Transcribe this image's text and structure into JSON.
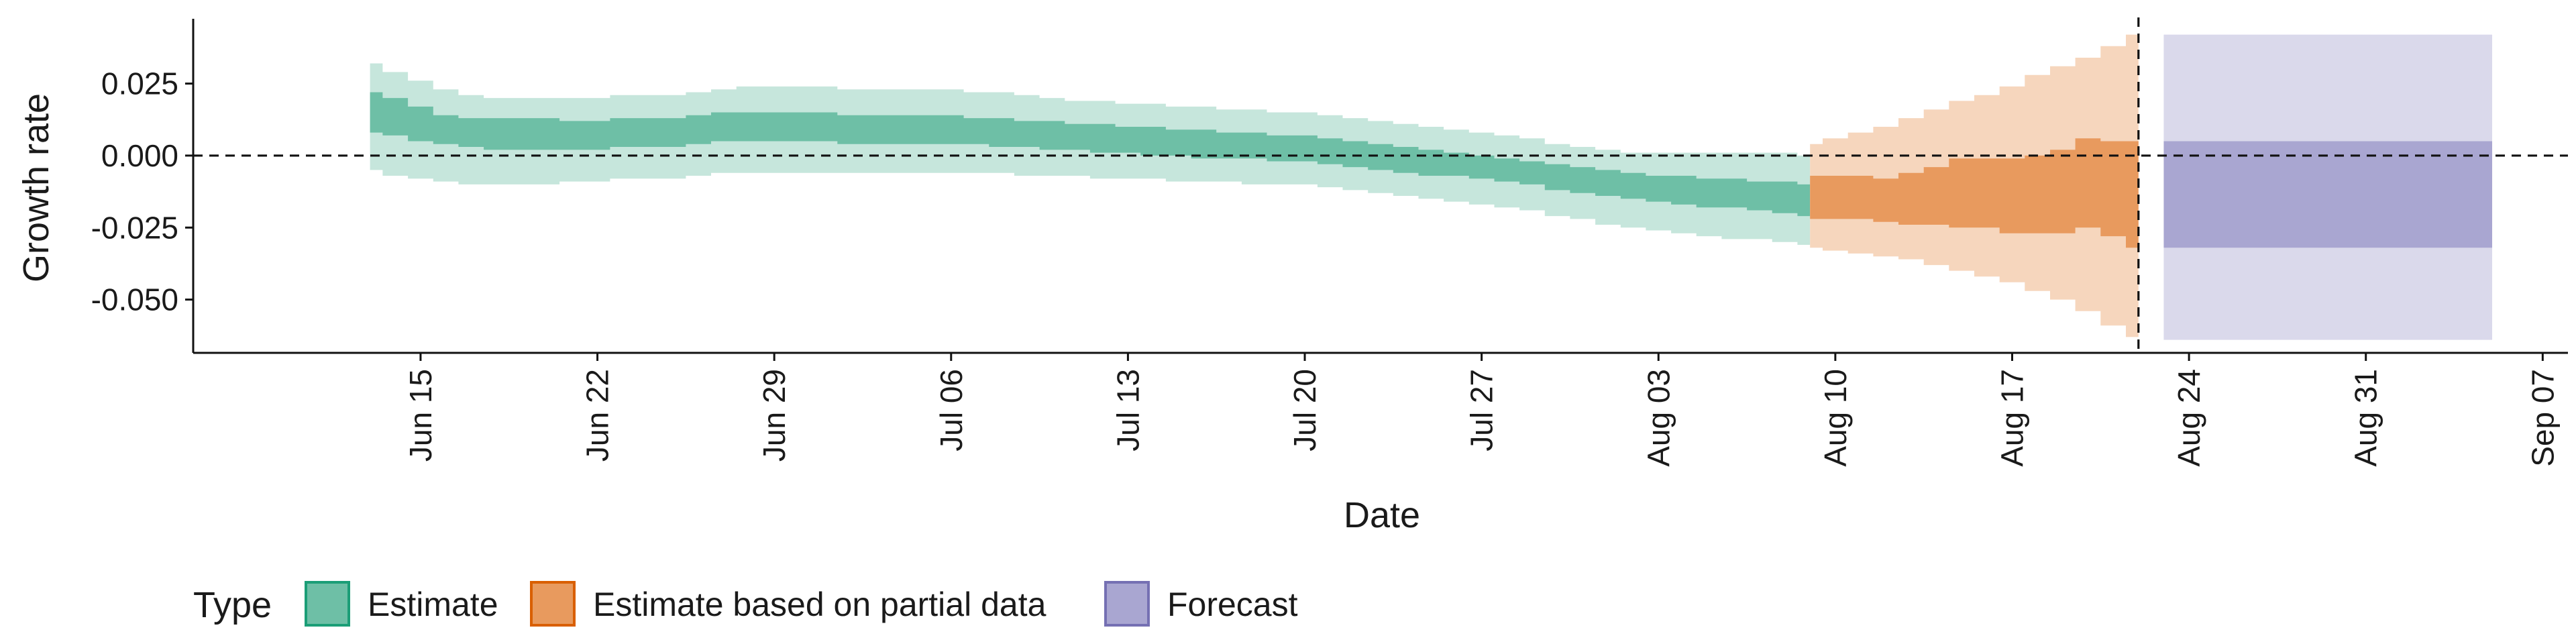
{
  "chart_data": {
    "type": "area",
    "xlabel": "Date",
    "ylabel": "Growth rate",
    "x_domain": [
      "2020-06-06",
      "2020-09-08"
    ],
    "ylim": [
      -0.0685,
      0.0475
    ],
    "y_ticks": [
      0.025,
      0.0,
      -0.025,
      -0.05
    ],
    "y_tick_labels": [
      "0.025",
      "0.000",
      "-0.025",
      "-0.050"
    ],
    "x_ticks": [
      "2020-06-15",
      "2020-06-22",
      "2020-06-29",
      "2020-07-06",
      "2020-07-13",
      "2020-07-20",
      "2020-07-27",
      "2020-08-03",
      "2020-08-10",
      "2020-08-17",
      "2020-08-24",
      "2020-08-31",
      "2020-09-07"
    ],
    "x_tick_labels": [
      "Jun 15",
      "Jun 22",
      "Jun 29",
      "Jul 06",
      "Jul 13",
      "Jul 20",
      "Jul 27",
      "Aug 03",
      "Aug 10",
      "Aug 17",
      "Aug 24",
      "Aug 31",
      "Sep 07"
    ],
    "reference_line_y": 0,
    "vertical_reference_x": "2020-08-22",
    "grid": false,
    "legend": {
      "title": "Type",
      "placement": "bottom",
      "entries": [
        {
          "label": "Estimate",
          "fill": "#6ebfa6",
          "stroke": "#1b9e77"
        },
        {
          "label": "Estimate based on partial data",
          "fill": "#e89a5e",
          "stroke": "#d95f02"
        },
        {
          "label": "Forecast",
          "fill": "#a9a6d1",
          "stroke": "#7570b3"
        }
      ]
    },
    "series": [
      {
        "name": "Estimate",
        "color_inner": "#6ebfa6",
        "color_outer": "#c6e6dc",
        "points": [
          {
            "x": "2020-06-13",
            "lo90": -0.005,
            "lo50": 0.008,
            "hi50": 0.022,
            "hi90": 0.032
          },
          {
            "x": "2020-06-14",
            "lo90": -0.007,
            "lo50": 0.007,
            "hi50": 0.02,
            "hi90": 0.029
          },
          {
            "x": "2020-06-15",
            "lo90": -0.008,
            "lo50": 0.005,
            "hi50": 0.017,
            "hi90": 0.026
          },
          {
            "x": "2020-06-16",
            "lo90": -0.009,
            "lo50": 0.004,
            "hi50": 0.014,
            "hi90": 0.023
          },
          {
            "x": "2020-06-17",
            "lo90": -0.01,
            "lo50": 0.003,
            "hi50": 0.013,
            "hi90": 0.021
          },
          {
            "x": "2020-06-18",
            "lo90": -0.01,
            "lo50": 0.002,
            "hi50": 0.013,
            "hi90": 0.02
          },
          {
            "x": "2020-06-19",
            "lo90": -0.01,
            "lo50": 0.002,
            "hi50": 0.013,
            "hi90": 0.02
          },
          {
            "x": "2020-06-20",
            "lo90": -0.01,
            "lo50": 0.002,
            "hi50": 0.013,
            "hi90": 0.02
          },
          {
            "x": "2020-06-21",
            "lo90": -0.009,
            "lo50": 0.002,
            "hi50": 0.012,
            "hi90": 0.02
          },
          {
            "x": "2020-06-22",
            "lo90": -0.009,
            "lo50": 0.002,
            "hi50": 0.012,
            "hi90": 0.02
          },
          {
            "x": "2020-06-23",
            "lo90": -0.008,
            "lo50": 0.003,
            "hi50": 0.013,
            "hi90": 0.021
          },
          {
            "x": "2020-06-24",
            "lo90": -0.008,
            "lo50": 0.003,
            "hi50": 0.013,
            "hi90": 0.021
          },
          {
            "x": "2020-06-25",
            "lo90": -0.008,
            "lo50": 0.003,
            "hi50": 0.013,
            "hi90": 0.021
          },
          {
            "x": "2020-06-26",
            "lo90": -0.007,
            "lo50": 0.004,
            "hi50": 0.014,
            "hi90": 0.022
          },
          {
            "x": "2020-06-27",
            "lo90": -0.006,
            "lo50": 0.005,
            "hi50": 0.015,
            "hi90": 0.023
          },
          {
            "x": "2020-06-28",
            "lo90": -0.006,
            "lo50": 0.005,
            "hi50": 0.015,
            "hi90": 0.024
          },
          {
            "x": "2020-06-29",
            "lo90": -0.006,
            "lo50": 0.005,
            "hi50": 0.015,
            "hi90": 0.024
          },
          {
            "x": "2020-06-30",
            "lo90": -0.006,
            "lo50": 0.005,
            "hi50": 0.015,
            "hi90": 0.024
          },
          {
            "x": "2020-07-01",
            "lo90": -0.006,
            "lo50": 0.005,
            "hi50": 0.015,
            "hi90": 0.024
          },
          {
            "x": "2020-07-02",
            "lo90": -0.006,
            "lo50": 0.004,
            "hi50": 0.014,
            "hi90": 0.023
          },
          {
            "x": "2020-07-03",
            "lo90": -0.006,
            "lo50": 0.004,
            "hi50": 0.014,
            "hi90": 0.023
          },
          {
            "x": "2020-07-04",
            "lo90": -0.006,
            "lo50": 0.004,
            "hi50": 0.014,
            "hi90": 0.023
          },
          {
            "x": "2020-07-05",
            "lo90": -0.006,
            "lo50": 0.004,
            "hi50": 0.014,
            "hi90": 0.023
          },
          {
            "x": "2020-07-06",
            "lo90": -0.006,
            "lo50": 0.004,
            "hi50": 0.014,
            "hi90": 0.023
          },
          {
            "x": "2020-07-07",
            "lo90": -0.006,
            "lo50": 0.004,
            "hi50": 0.013,
            "hi90": 0.022
          },
          {
            "x": "2020-07-08",
            "lo90": -0.006,
            "lo50": 0.003,
            "hi50": 0.013,
            "hi90": 0.022
          },
          {
            "x": "2020-07-09",
            "lo90": -0.007,
            "lo50": 0.003,
            "hi50": 0.012,
            "hi90": 0.021
          },
          {
            "x": "2020-07-10",
            "lo90": -0.007,
            "lo50": 0.002,
            "hi50": 0.012,
            "hi90": 0.02
          },
          {
            "x": "2020-07-11",
            "lo90": -0.007,
            "lo50": 0.002,
            "hi50": 0.011,
            "hi90": 0.019
          },
          {
            "x": "2020-07-12",
            "lo90": -0.008,
            "lo50": 0.001,
            "hi50": 0.011,
            "hi90": 0.019
          },
          {
            "x": "2020-07-13",
            "lo90": -0.008,
            "lo50": 0.001,
            "hi50": 0.01,
            "hi90": 0.018
          },
          {
            "x": "2020-07-14",
            "lo90": -0.008,
            "lo50": 0.0,
            "hi50": 0.01,
            "hi90": 0.018
          },
          {
            "x": "2020-07-15",
            "lo90": -0.009,
            "lo50": 0.0,
            "hi50": 0.009,
            "hi90": 0.017
          },
          {
            "x": "2020-07-16",
            "lo90": -0.009,
            "lo50": -0.001,
            "hi50": 0.009,
            "hi90": 0.017
          },
          {
            "x": "2020-07-17",
            "lo90": -0.009,
            "lo50": -0.001,
            "hi50": 0.008,
            "hi90": 0.016
          },
          {
            "x": "2020-07-18",
            "lo90": -0.01,
            "lo50": -0.001,
            "hi50": 0.008,
            "hi90": 0.016
          },
          {
            "x": "2020-07-19",
            "lo90": -0.01,
            "lo50": -0.002,
            "hi50": 0.007,
            "hi90": 0.015
          },
          {
            "x": "2020-07-20",
            "lo90": -0.01,
            "lo50": -0.002,
            "hi50": 0.007,
            "hi90": 0.015
          },
          {
            "x": "2020-07-21",
            "lo90": -0.011,
            "lo50": -0.003,
            "hi50": 0.006,
            "hi90": 0.014
          },
          {
            "x": "2020-07-22",
            "lo90": -0.012,
            "lo50": -0.004,
            "hi50": 0.005,
            "hi90": 0.013
          },
          {
            "x": "2020-07-23",
            "lo90": -0.013,
            "lo50": -0.005,
            "hi50": 0.004,
            "hi90": 0.012
          },
          {
            "x": "2020-07-24",
            "lo90": -0.014,
            "lo50": -0.006,
            "hi50": 0.003,
            "hi90": 0.011
          },
          {
            "x": "2020-07-25",
            "lo90": -0.015,
            "lo50": -0.007,
            "hi50": 0.002,
            "hi90": 0.01
          },
          {
            "x": "2020-07-26",
            "lo90": -0.016,
            "lo50": -0.007,
            "hi50": 0.001,
            "hi90": 0.009
          },
          {
            "x": "2020-07-27",
            "lo90": -0.017,
            "lo50": -0.008,
            "hi50": 0.0,
            "hi90": 0.008
          },
          {
            "x": "2020-07-28",
            "lo90": -0.018,
            "lo50": -0.009,
            "hi50": -0.001,
            "hi90": 0.007
          },
          {
            "x": "2020-07-29",
            "lo90": -0.019,
            "lo50": -0.01,
            "hi50": -0.002,
            "hi90": 0.006
          },
          {
            "x": "2020-07-30",
            "lo90": -0.021,
            "lo50": -0.012,
            "hi50": -0.003,
            "hi90": 0.004
          },
          {
            "x": "2020-07-31",
            "lo90": -0.022,
            "lo50": -0.013,
            "hi50": -0.004,
            "hi90": 0.003
          },
          {
            "x": "2020-08-01",
            "lo90": -0.024,
            "lo50": -0.014,
            "hi50": -0.005,
            "hi90": 0.002
          },
          {
            "x": "2020-08-02",
            "lo90": -0.025,
            "lo50": -0.015,
            "hi50": -0.006,
            "hi90": 0.001
          },
          {
            "x": "2020-08-03",
            "lo90": -0.026,
            "lo50": -0.016,
            "hi50": -0.007,
            "hi90": 0.001
          },
          {
            "x": "2020-08-04",
            "lo90": -0.027,
            "lo50": -0.017,
            "hi50": -0.007,
            "hi90": 0.001
          },
          {
            "x": "2020-08-05",
            "lo90": -0.028,
            "lo50": -0.018,
            "hi50": -0.008,
            "hi90": 0.001
          },
          {
            "x": "2020-08-06",
            "lo90": -0.029,
            "lo50": -0.018,
            "hi50": -0.008,
            "hi90": 0.001
          },
          {
            "x": "2020-08-07",
            "lo90": -0.029,
            "lo50": -0.019,
            "hi50": -0.009,
            "hi90": 0.001
          },
          {
            "x": "2020-08-08",
            "lo90": -0.03,
            "lo50": -0.02,
            "hi50": -0.009,
            "hi90": 0.001
          },
          {
            "x": "2020-08-09",
            "lo90": -0.031,
            "lo50": -0.021,
            "hi50": -0.01,
            "hi90": 0.0
          }
        ]
      },
      {
        "name": "Estimate based on partial data",
        "color_inner": "#e89a5e",
        "color_outer": "#f6d6bd",
        "points": [
          {
            "x": "2020-08-09",
            "lo90": -0.032,
            "lo50": -0.022,
            "hi50": -0.007,
            "hi90": 0.004
          },
          {
            "x": "2020-08-10",
            "lo90": -0.033,
            "lo50": -0.022,
            "hi50": -0.007,
            "hi90": 0.006
          },
          {
            "x": "2020-08-11",
            "lo90": -0.034,
            "lo50": -0.022,
            "hi50": -0.007,
            "hi90": 0.008
          },
          {
            "x": "2020-08-12",
            "lo90": -0.035,
            "lo50": -0.023,
            "hi50": -0.008,
            "hi90": 0.01
          },
          {
            "x": "2020-08-13",
            "lo90": -0.036,
            "lo50": -0.024,
            "hi50": -0.006,
            "hi90": 0.013
          },
          {
            "x": "2020-08-14",
            "lo90": -0.038,
            "lo50": -0.024,
            "hi50": -0.004,
            "hi90": 0.016
          },
          {
            "x": "2020-08-15",
            "lo90": -0.04,
            "lo50": -0.025,
            "hi50": -0.001,
            "hi90": 0.019
          },
          {
            "x": "2020-08-16",
            "lo90": -0.042,
            "lo50": -0.025,
            "hi50": -0.001,
            "hi90": 0.021
          },
          {
            "x": "2020-08-17",
            "lo90": -0.044,
            "lo50": -0.027,
            "hi50": -0.001,
            "hi90": 0.024
          },
          {
            "x": "2020-08-18",
            "lo90": -0.047,
            "lo50": -0.027,
            "hi50": 0.0,
            "hi90": 0.028
          },
          {
            "x": "2020-08-19",
            "lo90": -0.05,
            "lo50": -0.027,
            "hi50": 0.002,
            "hi90": 0.031
          },
          {
            "x": "2020-08-20",
            "lo90": -0.054,
            "lo50": -0.025,
            "hi50": 0.006,
            "hi90": 0.034
          },
          {
            "x": "2020-08-21",
            "lo90": -0.059,
            "lo50": -0.028,
            "hi50": 0.005,
            "hi90": 0.038
          },
          {
            "x": "2020-08-22",
            "lo90": -0.063,
            "lo50": -0.032,
            "hi50": 0.005,
            "hi90": 0.042
          }
        ]
      },
      {
        "name": "Forecast",
        "color_inner": "#a9a6d1",
        "color_outer": "#dad9eb",
        "points": [
          {
            "x": "2020-08-23",
            "lo90": -0.064,
            "lo50": -0.032,
            "hi50": 0.005,
            "hi90": 0.042
          },
          {
            "x": "2020-09-05",
            "lo90": -0.064,
            "lo50": -0.032,
            "hi50": 0.005,
            "hi90": 0.042
          }
        ]
      }
    ]
  }
}
